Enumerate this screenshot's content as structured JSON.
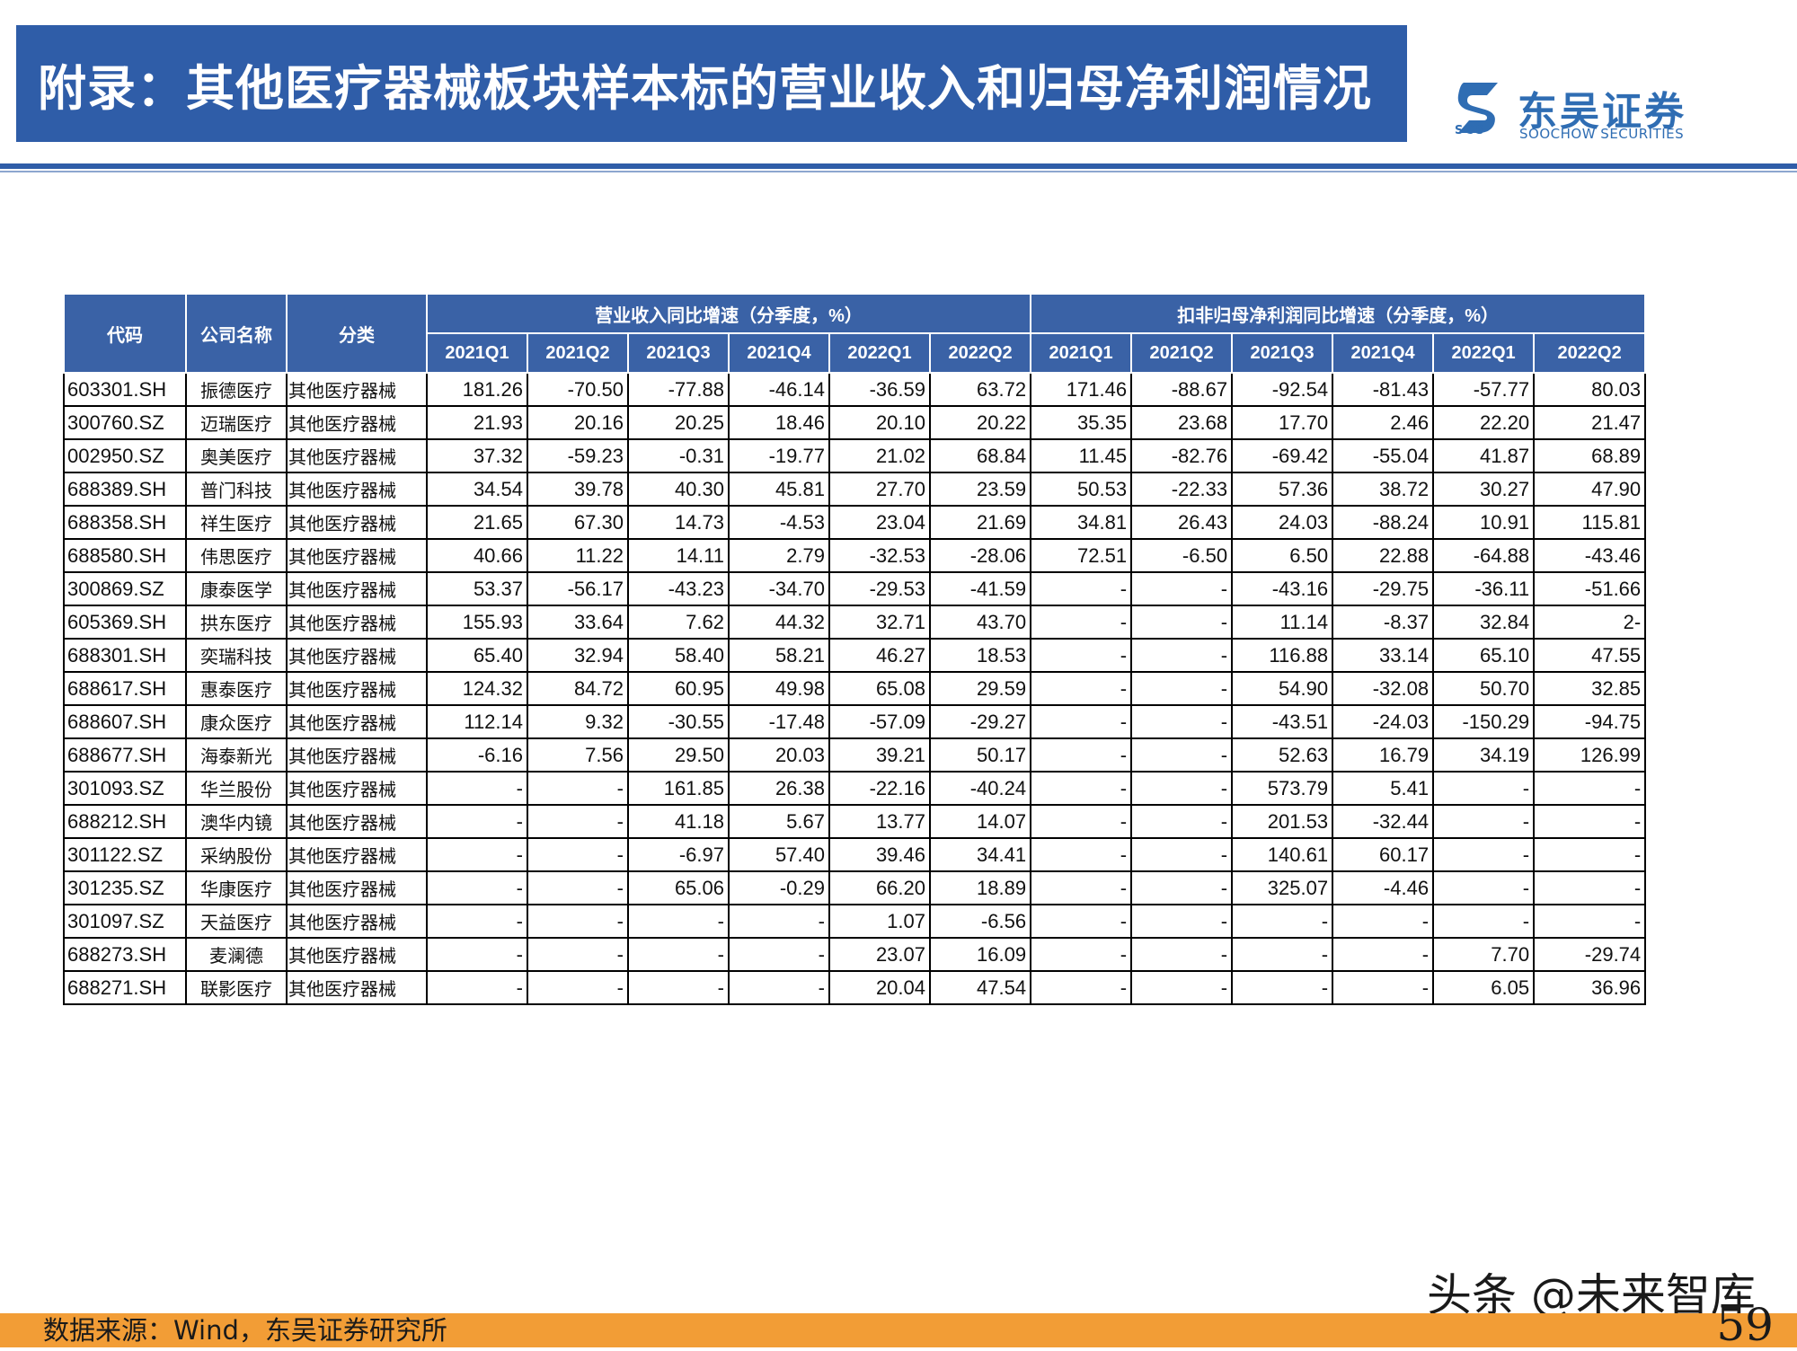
{
  "header": {
    "title": "附录：其他医疗器械板块样本标的营业收入和归母净利润情况",
    "logo_cn": "东吴证券",
    "logo_en": "SOOCHOW SECURITIES",
    "logo_abbr": "SCS",
    "brand_color": "#2f5da8"
  },
  "table": {
    "col_code": "代码",
    "col_name": "公司名称",
    "col_category": "分类",
    "group_revenue": "营业收入同比增速（分季度，%）",
    "group_profit": "扣非归母净利润同比增速（分季度，%）",
    "quarters": [
      "2021Q1",
      "2021Q2",
      "2021Q3",
      "2021Q4",
      "2022Q1",
      "2022Q2",
      "2021Q1",
      "2021Q2",
      "2021Q3",
      "2021Q4",
      "2022Q1",
      "2022Q2"
    ],
    "rows": [
      {
        "code": "603301.SH",
        "name": "振德医疗",
        "cat": "其他医疗器械",
        "v": [
          "181.26",
          "-70.50",
          "-77.88",
          "-46.14",
          "-36.59",
          "63.72",
          "171.46",
          "-88.67",
          "-92.54",
          "-81.43",
          "-57.77",
          "80.03"
        ]
      },
      {
        "code": "300760.SZ",
        "name": "迈瑞医疗",
        "cat": "其他医疗器械",
        "v": [
          "21.93",
          "20.16",
          "20.25",
          "18.46",
          "20.10",
          "20.22",
          "35.35",
          "23.68",
          "17.70",
          "2.46",
          "22.20",
          "21.47"
        ]
      },
      {
        "code": "002950.SZ",
        "name": "奥美医疗",
        "cat": "其他医疗器械",
        "v": [
          "37.32",
          "-59.23",
          "-0.31",
          "-19.77",
          "21.02",
          "68.84",
          "11.45",
          "-82.76",
          "-69.42",
          "-55.04",
          "41.87",
          "68.89"
        ]
      },
      {
        "code": "688389.SH",
        "name": "普门科技",
        "cat": "其他医疗器械",
        "v": [
          "34.54",
          "39.78",
          "40.30",
          "45.81",
          "27.70",
          "23.59",
          "50.53",
          "-22.33",
          "57.36",
          "38.72",
          "30.27",
          "47.90"
        ]
      },
      {
        "code": "688358.SH",
        "name": "祥生医疗",
        "cat": "其他医疗器械",
        "v": [
          "21.65",
          "67.30",
          "14.73",
          "-4.53",
          "23.04",
          "21.69",
          "34.81",
          "26.43",
          "24.03",
          "-88.24",
          "10.91",
          "115.81"
        ]
      },
      {
        "code": "688580.SH",
        "name": "伟思医疗",
        "cat": "其他医疗器械",
        "v": [
          "40.66",
          "11.22",
          "14.11",
          "2.79",
          "-32.53",
          "-28.06",
          "72.51",
          "-6.50",
          "6.50",
          "22.88",
          "-64.88",
          "-43.46"
        ]
      },
      {
        "code": "300869.SZ",
        "name": "康泰医学",
        "cat": "其他医疗器械",
        "v": [
          "53.37",
          "-56.17",
          "-43.23",
          "-34.70",
          "-29.53",
          "-41.59",
          "-",
          "-",
          "-43.16",
          "-29.75",
          "-36.11",
          "-51.66"
        ]
      },
      {
        "code": "605369.SH",
        "name": "拱东医疗",
        "cat": "其他医疗器械",
        "v": [
          "155.93",
          "33.64",
          "7.62",
          "44.32",
          "32.71",
          "43.70",
          "-",
          "-",
          "11.14",
          "-8.37",
          "32.84",
          "2-"
        ]
      },
      {
        "code": "688301.SH",
        "name": "奕瑞科技",
        "cat": "其他医疗器械",
        "v": [
          "65.40",
          "32.94",
          "58.40",
          "58.21",
          "46.27",
          "18.53",
          "-",
          "-",
          "116.88",
          "33.14",
          "65.10",
          "47.55"
        ]
      },
      {
        "code": "688617.SH",
        "name": "惠泰医疗",
        "cat": "其他医疗器械",
        "v": [
          "124.32",
          "84.72",
          "60.95",
          "49.98",
          "65.08",
          "29.59",
          "-",
          "-",
          "54.90",
          "-32.08",
          "50.70",
          "32.85"
        ]
      },
      {
        "code": "688607.SH",
        "name": "康众医疗",
        "cat": "其他医疗器械",
        "v": [
          "112.14",
          "9.32",
          "-30.55",
          "-17.48",
          "-57.09",
          "-29.27",
          "-",
          "-",
          "-43.51",
          "-24.03",
          "-150.29",
          "-94.75"
        ]
      },
      {
        "code": "688677.SH",
        "name": "海泰新光",
        "cat": "其他医疗器械",
        "v": [
          "-6.16",
          "7.56",
          "29.50",
          "20.03",
          "39.21",
          "50.17",
          "-",
          "-",
          "52.63",
          "16.79",
          "34.19",
          "126.99"
        ]
      },
      {
        "code": "301093.SZ",
        "name": "华兰股份",
        "cat": "其他医疗器械",
        "v": [
          "-",
          "-",
          "161.85",
          "26.38",
          "-22.16",
          "-40.24",
          "-",
          "-",
          "573.79",
          "5.41",
          "-",
          "-"
        ]
      },
      {
        "code": "688212.SH",
        "name": "澳华内镜",
        "cat": "其他医疗器械",
        "v": [
          "-",
          "-",
          "41.18",
          "5.67",
          "13.77",
          "14.07",
          "-",
          "-",
          "201.53",
          "-32.44",
          "-",
          "-"
        ]
      },
      {
        "code": "301122.SZ",
        "name": "采纳股份",
        "cat": "其他医疗器械",
        "v": [
          "-",
          "-",
          "-6.97",
          "57.40",
          "39.46",
          "34.41",
          "-",
          "-",
          "140.61",
          "60.17",
          "-",
          "-"
        ]
      },
      {
        "code": "301235.SZ",
        "name": "华康医疗",
        "cat": "其他医疗器械",
        "v": [
          "-",
          "-",
          "65.06",
          "-0.29",
          "66.20",
          "18.89",
          "-",
          "-",
          "325.07",
          "-4.46",
          "-",
          "-"
        ]
      },
      {
        "code": "301097.SZ",
        "name": "天益医疗",
        "cat": "其他医疗器械",
        "v": [
          "-",
          "-",
          "-",
          "-",
          "1.07",
          "-6.56",
          "-",
          "-",
          "-",
          "-",
          "-",
          "-"
        ]
      },
      {
        "code": "688273.SH",
        "name": "麦澜德",
        "cat": "其他医疗器械",
        "v": [
          "-",
          "-",
          "-",
          "-",
          "23.07",
          "16.09",
          "-",
          "-",
          "-",
          "-",
          "7.70",
          "-29.74"
        ]
      },
      {
        "code": "688271.SH",
        "name": "联影医疗",
        "cat": "其他医疗器械",
        "v": [
          "-",
          "-",
          "-",
          "-",
          "20.04",
          "47.54",
          "-",
          "-",
          "-",
          "-",
          "6.05",
          "36.96"
        ]
      }
    ]
  },
  "footer": {
    "source": "数据来源：Wind，东吴证券研究所",
    "watermark": "头条 @未来智库",
    "page_number": "59",
    "accent_color": "#f29d36"
  }
}
